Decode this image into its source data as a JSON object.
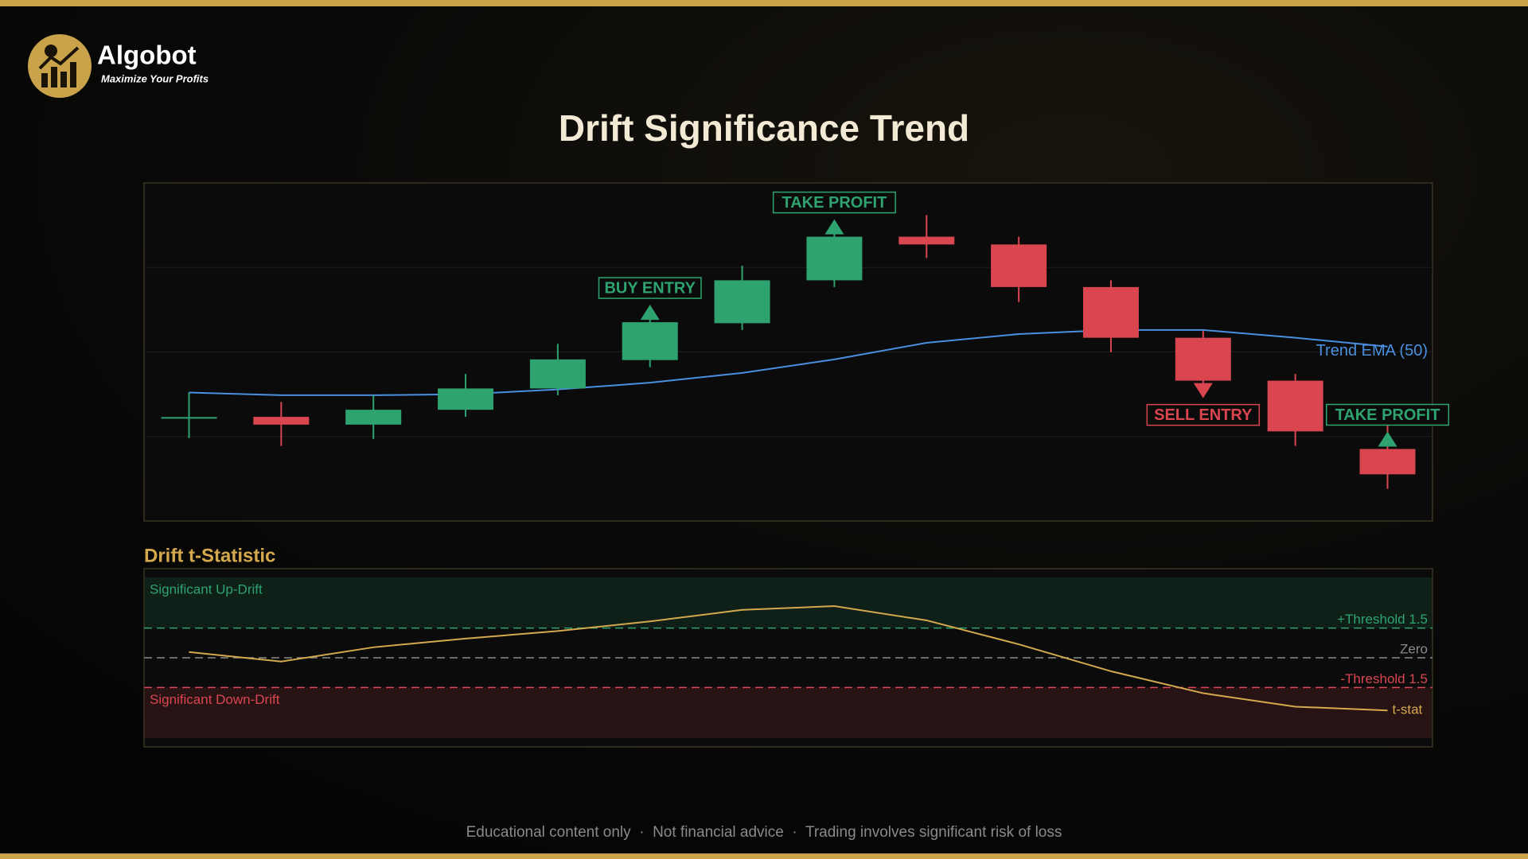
{
  "brand": {
    "name": "Algobot",
    "tagline": "Maximize Your Profits"
  },
  "chart_data": [
    {
      "type": "candlestick",
      "title": "Drift Significance Trend",
      "categories": [
        null,
        null,
        null,
        null,
        null,
        null,
        null,
        null,
        null,
        null,
        null,
        null,
        null,
        null
      ],
      "open": [
        30.5,
        30.8,
        28.5,
        32.9,
        39.2,
        47.6,
        58.5,
        71.2,
        84.1,
        81.8,
        69.2,
        54.2,
        41.5,
        21.3
      ],
      "high": [
        38.0,
        35.2,
        37.2,
        43.5,
        52.4,
        60.5,
        75.5,
        85.0,
        90.5,
        84.1,
        71.2,
        56.2,
        43.5,
        28.5
      ],
      "low": [
        24.5,
        22.2,
        24.2,
        30.8,
        37.2,
        45.5,
        56.5,
        69.2,
        77.8,
        64.8,
        49.9,
        39.5,
        22.2,
        9.5
      ],
      "close": [
        30.5,
        28.5,
        32.9,
        39.2,
        47.8,
        58.8,
        71.2,
        84.1,
        81.8,
        69.2,
        54.2,
        41.5,
        26.5,
        13.8
      ],
      "up_color": "#2ea36f",
      "down_color": "#d9464f",
      "overlay": {
        "name": "Trend EMA (50)",
        "color": "#4a8fe0",
        "values": [
          38.0,
          37.2,
          37.2,
          37.5,
          38.9,
          40.9,
          43.8,
          47.8,
          52.7,
          55.3,
          56.5,
          56.5,
          54.2,
          51.6
        ]
      },
      "annotations": [
        {
          "text": "BUY ENTRY",
          "candle": 5,
          "direction": "up",
          "color": "#2ea36f"
        },
        {
          "text": "TAKE PROFIT",
          "candle": 7,
          "direction": "up",
          "color": "#2ea36f"
        },
        {
          "text": "SELL ENTRY",
          "candle": 11,
          "direction": "down",
          "color": "#d9464f"
        },
        {
          "text": "TAKE PROFIT",
          "candle": 13,
          "direction": "up",
          "color": "#2ea36f"
        }
      ],
      "ylim": [
        0,
        100
      ],
      "gridlines": [
        25,
        50,
        75
      ]
    },
    {
      "type": "line",
      "title": "Drift t-Statistic",
      "categories": [
        null,
        null,
        null,
        null,
        null,
        null,
        null,
        null,
        null,
        null,
        null,
        null,
        null,
        null
      ],
      "series": [
        {
          "name": "t-stat",
          "color": "#d4a94e",
          "values": [
            0.29,
            -0.19,
            0.53,
            0.97,
            1.35,
            1.84,
            2.42,
            2.61,
            1.89,
            0.68,
            -0.68,
            -1.79,
            -2.47,
            -2.66
          ]
        }
      ],
      "reference_lines": [
        {
          "value": 1.5,
          "label": "+Threshold 1.5",
          "color": "#2ea36f"
        },
        {
          "value": 0,
          "label": "Zero",
          "color": "#8a8a8a"
        },
        {
          "value": -1.5,
          "label": "-Threshold 1.5",
          "color": "#d9464f"
        }
      ],
      "up_zone_label": "Significant Up-Drift",
      "down_zone_label": "Significant Down-Drift",
      "ylim": [
        -4.5,
        4.5
      ]
    }
  ],
  "footer": "Educational content only  ·  Not financial advice  ·  Trading involves significant risk of loss"
}
